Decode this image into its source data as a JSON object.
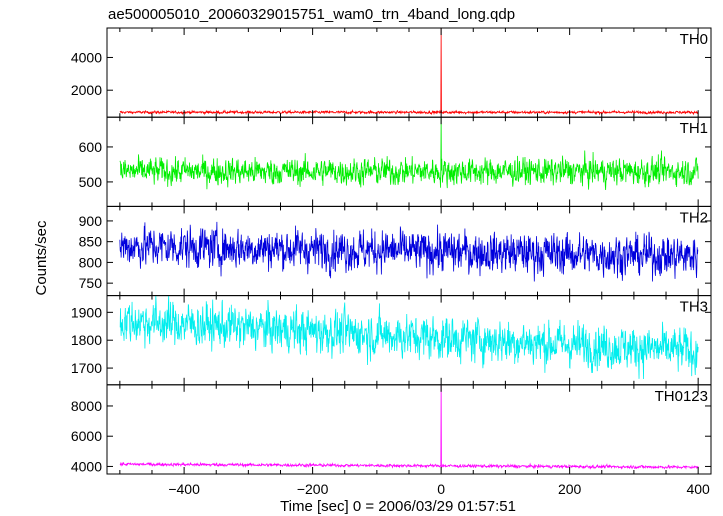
{
  "chart_data": {
    "type": "line",
    "title": "ae500005010_20060329015751_wam0_trn_4band_long.qdp",
    "xlabel": "Time [sec] 0 = 2006/03/29 01:57:51",
    "ylabel": "Counts/sec",
    "xlim": [
      -520,
      420
    ],
    "x_ticks": [
      -400,
      -200,
      0,
      200,
      400
    ],
    "grid": false,
    "panels": [
      {
        "name": "TH0",
        "color": "#ff0000",
        "ylim": [
          350,
          5800
        ],
        "y_ticks": [
          2000,
          4000
        ],
        "x_range": [
          -500,
          400
        ],
        "baseline": 650,
        "noise": 45,
        "spike": {
          "x": 0,
          "y": 5800
        }
      },
      {
        "name": "TH1",
        "color": "#00ee00",
        "ylim": [
          430,
          685
        ],
        "y_ticks": [
          500,
          600
        ],
        "x_range": [
          -500,
          400
        ],
        "baseline": 530,
        "noise": 22,
        "spike": {
          "x": 0,
          "y": 685
        }
      },
      {
        "name": "TH2",
        "color": "#0000dd",
        "ylim": [
          720,
          935
        ],
        "y_ticks": [
          750,
          800,
          850,
          900
        ],
        "x_range": [
          -500,
          400
        ],
        "baseline": 828,
        "noise": 28,
        "trend": [
          840,
          815
        ]
      },
      {
        "name": "TH3",
        "color": "#00eeee",
        "ylim": [
          1640,
          1960
        ],
        "y_ticks": [
          1700,
          1800,
          1900
        ],
        "x_range": [
          -500,
          400
        ],
        "baseline": 1820,
        "noise": 45,
        "trend": [
          1870,
          1760
        ]
      },
      {
        "name": "TH0123",
        "color": "#ff00ff",
        "ylim": [
          3500,
          9400
        ],
        "y_ticks": [
          4000,
          6000,
          8000
        ],
        "x_range": [
          -500,
          400
        ],
        "baseline": 4050,
        "noise": 55,
        "trend": [
          4150,
          3950
        ],
        "spike": {
          "x": 0,
          "y": 9400
        }
      }
    ]
  }
}
